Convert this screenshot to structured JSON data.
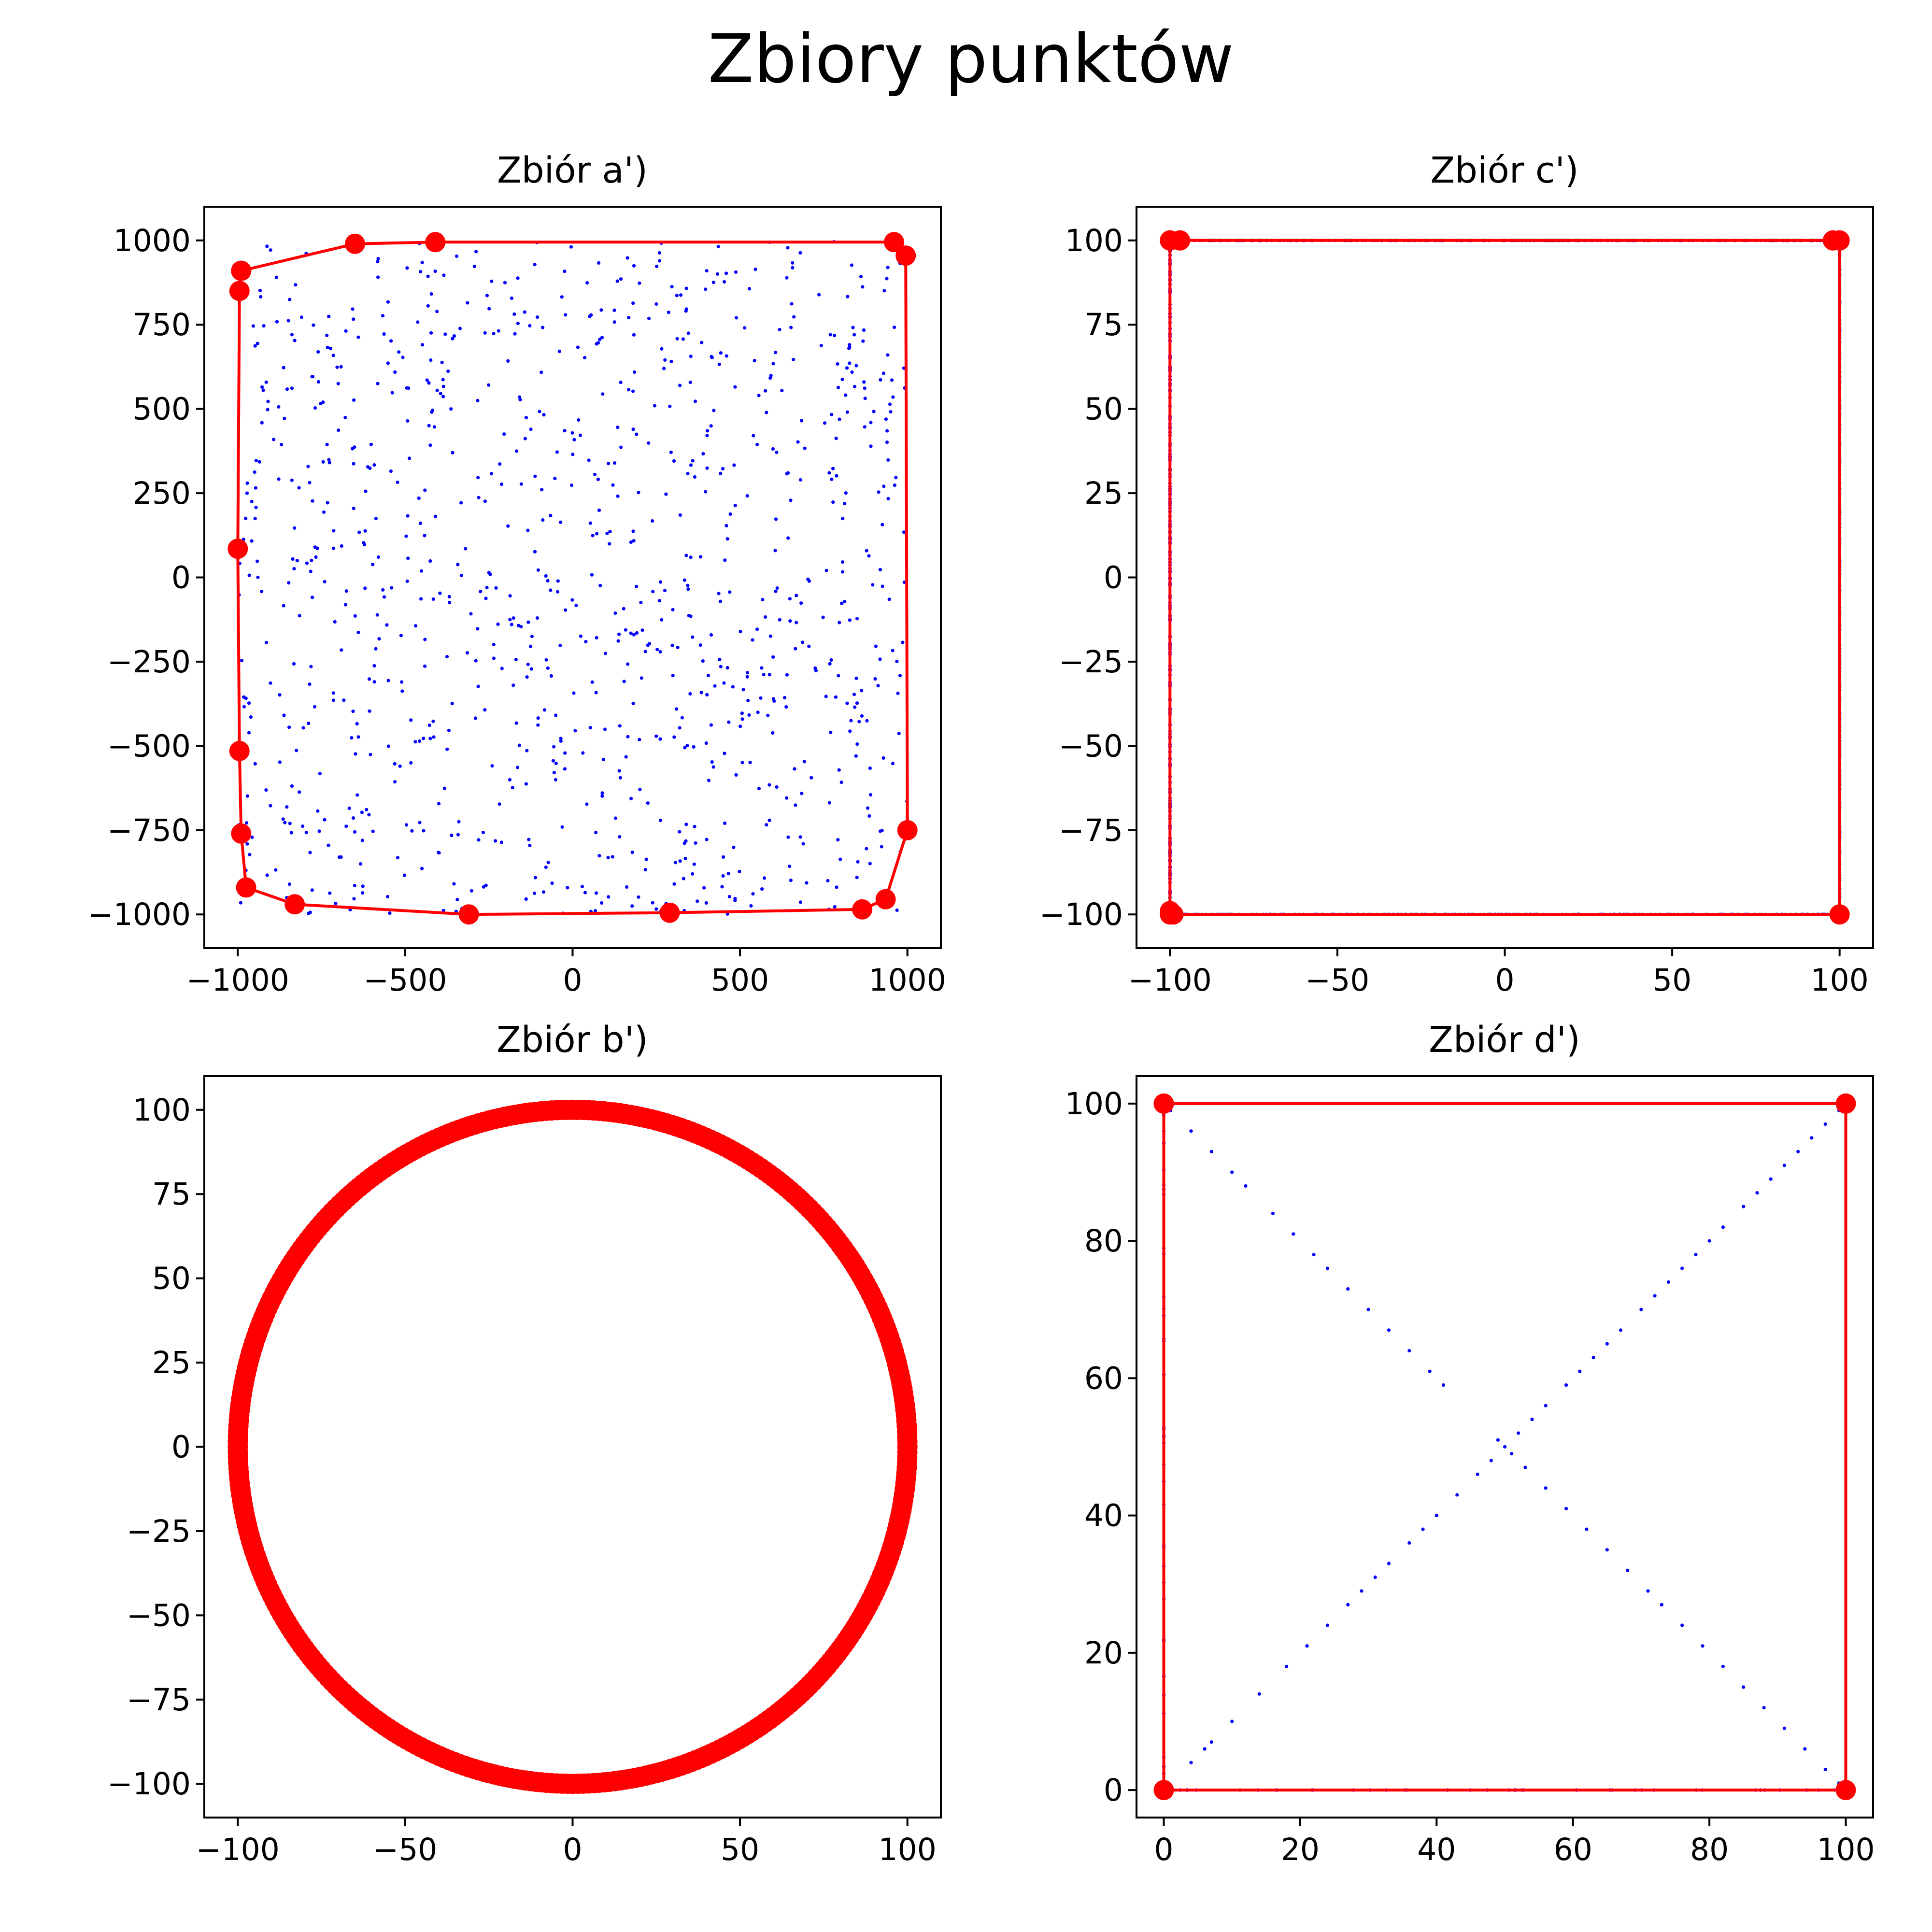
{
  "figure": {
    "title": "Zbiory punktów"
  },
  "colors": {
    "points": "#0000ff",
    "hull": "#ff0000",
    "axes": "#000000"
  },
  "chart_data": [
    {
      "id": "a",
      "type": "scatter",
      "title": "Zbiór a')",
      "xlim": [
        -1100,
        1100
      ],
      "ylim": [
        -1100,
        1100
      ],
      "xticks": [
        -1000,
        -500,
        0,
        500,
        1000
      ],
      "yticks": [
        -1000,
        -750,
        -500,
        -250,
        0,
        250,
        500,
        750,
        1000
      ],
      "points": {
        "kind": "uniform-square",
        "x_range": [
          -1000,
          1000
        ],
        "y_range": [
          -1000,
          1000
        ],
        "count": 1000
      },
      "hull": [
        [
          -990,
          910
        ],
        [
          -650,
          990
        ],
        [
          -410,
          995
        ],
        [
          960,
          995
        ],
        [
          995,
          955
        ],
        [
          1000,
          -750
        ],
        [
          935,
          -955
        ],
        [
          865,
          -985
        ],
        [
          290,
          -995
        ],
        [
          -310,
          -1000
        ],
        [
          -830,
          -970
        ],
        [
          -975,
          -920
        ],
        [
          -990,
          -760
        ],
        [
          -995,
          -515
        ],
        [
          -1000,
          85
        ],
        [
          -995,
          850
        ],
        [
          -990,
          910
        ]
      ]
    },
    {
      "id": "c",
      "type": "scatter",
      "title": "Zbiór c')",
      "xlim": [
        -110,
        110
      ],
      "ylim": [
        -110,
        110
      ],
      "xticks": [
        -100,
        -50,
        0,
        50,
        100
      ],
      "yticks": [
        -100,
        -75,
        -50,
        -25,
        0,
        25,
        50,
        75,
        100
      ],
      "points": {
        "kind": "square-perimeter",
        "min": -100,
        "max": 100,
        "count": 1000
      },
      "hull": [
        [
          -100,
          100
        ],
        [
          -97,
          100
        ],
        [
          98,
          100
        ],
        [
          100,
          100
        ],
        [
          100,
          -100
        ],
        [
          -99,
          -100
        ],
        [
          -100,
          -100
        ],
        [
          -100,
          -99
        ],
        [
          -100,
          100
        ]
      ]
    },
    {
      "id": "b",
      "type": "scatter",
      "title": "Zbiór b')",
      "xlim": [
        -110,
        110
      ],
      "ylim": [
        -110,
        110
      ],
      "xticks": [
        -100,
        -50,
        0,
        50,
        100
      ],
      "yticks": [
        -100,
        -75,
        -50,
        -25,
        0,
        25,
        50,
        75,
        100
      ],
      "points": {
        "kind": "circle",
        "center": [
          0,
          0
        ],
        "radius": 100,
        "count": 1000
      },
      "hull": {
        "kind": "circle",
        "center": [
          0,
          0
        ],
        "radius": 100,
        "vertices": 400
      }
    },
    {
      "id": "d",
      "type": "scatter",
      "title": "Zbiór d')",
      "xlim": [
        -4,
        104
      ],
      "ylim": [
        -4,
        104
      ],
      "xticks": [
        0,
        20,
        40,
        60,
        80,
        100
      ],
      "yticks": [
        0,
        20,
        40,
        60,
        80,
        100
      ],
      "points": {
        "kind": "square-sides-and-diagonals",
        "min": 0,
        "max": 100,
        "diagonal_points": [
          [
            4,
            4
          ],
          [
            6,
            6
          ],
          [
            7,
            7
          ],
          [
            10,
            10
          ],
          [
            14,
            14
          ],
          [
            18,
            18
          ],
          [
            21,
            21
          ],
          [
            24,
            24
          ],
          [
            27,
            27
          ],
          [
            29,
            29
          ],
          [
            31,
            31
          ],
          [
            33,
            33
          ],
          [
            36,
            36
          ],
          [
            38,
            38
          ],
          [
            40,
            40
          ],
          [
            43,
            43
          ],
          [
            46,
            46
          ],
          [
            48,
            48
          ],
          [
            50,
            50
          ],
          [
            52,
            52
          ],
          [
            54,
            54
          ],
          [
            56,
            56
          ],
          [
            59,
            59
          ],
          [
            61,
            61
          ],
          [
            63,
            63
          ],
          [
            65,
            65
          ],
          [
            67,
            67
          ],
          [
            70,
            70
          ],
          [
            72,
            72
          ],
          [
            74,
            74
          ],
          [
            76,
            76
          ],
          [
            78,
            78
          ],
          [
            80,
            80
          ],
          [
            82,
            82
          ],
          [
            85,
            85
          ],
          [
            87,
            87
          ],
          [
            89,
            89
          ],
          [
            91,
            91
          ],
          [
            93,
            93
          ],
          [
            95,
            95
          ],
          [
            97,
            97
          ],
          [
            99,
            99
          ],
          [
            1,
            99
          ],
          [
            4,
            96
          ],
          [
            7,
            93
          ],
          [
            10,
            90
          ],
          [
            12,
            88
          ],
          [
            16,
            84
          ],
          [
            19,
            81
          ],
          [
            22,
            78
          ],
          [
            24,
            76
          ],
          [
            27,
            73
          ],
          [
            30,
            70
          ],
          [
            33,
            67
          ],
          [
            36,
            64
          ],
          [
            39,
            61
          ],
          [
            41,
            59
          ],
          [
            49,
            51
          ],
          [
            51,
            49
          ],
          [
            53,
            47
          ],
          [
            56,
            44
          ],
          [
            59,
            41
          ],
          [
            62,
            38
          ],
          [
            65,
            35
          ],
          [
            68,
            32
          ],
          [
            71,
            29
          ],
          [
            73,
            27
          ],
          [
            76,
            24
          ],
          [
            79,
            21
          ],
          [
            82,
            18
          ],
          [
            85,
            15
          ],
          [
            88,
            12
          ],
          [
            91,
            9
          ],
          [
            94,
            6
          ],
          [
            97,
            3
          ],
          [
            99,
            1
          ]
        ]
      },
      "hull": [
        [
          0,
          100
        ],
        [
          100,
          100
        ],
        [
          100,
          0
        ],
        [
          0,
          0
        ],
        [
          0,
          100
        ]
      ]
    }
  ]
}
